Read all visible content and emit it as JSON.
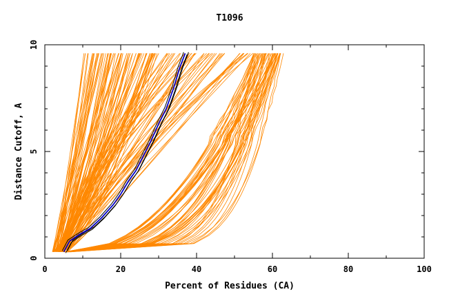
{
  "chart_data": {
    "type": "line",
    "title": "T1096",
    "xlabel": "Percent of Residues (CA)",
    "ylabel": "Distance Cutoff, A",
    "xlim": [
      0,
      100
    ],
    "ylim": [
      0,
      10
    ],
    "x_ticks": [
      0,
      20,
      40,
      60,
      80,
      100
    ],
    "y_ticks": [
      0,
      5,
      10
    ],
    "y_tick_labels": [
      "0",
      "5",
      "10"
    ],
    "x_tick_labels": [
      "0",
      "20",
      "40",
      "60",
      "80",
      "100"
    ],
    "grid": false,
    "colors": {
      "models": "#ff8800",
      "highlight_outline": "#000000",
      "highlight": "#0000cc"
    },
    "series_groups": [
      {
        "style": "models",
        "count": 180,
        "curve_families": [
          {
            "label": "steep",
            "x_at_0.3": [
              2,
              5
            ],
            "x_at_9.6": [
              10,
              30
            ]
          },
          {
            "label": "middle",
            "x_at_0.3": [
              4,
              6
            ],
            "x_at_9.6": [
              30,
              55
            ]
          },
          {
            "label": "flat",
            "x_at_0.3": [
              5,
              7
            ],
            "x_at_9.6": [
              55,
              63
            ]
          }
        ]
      },
      {
        "style": "highlight",
        "points": [
          {
            "x": 5.0,
            "y": 0.3
          },
          {
            "x": 6.5,
            "y": 0.8
          },
          {
            "x": 9.0,
            "y": 1.1
          },
          {
            "x": 12.0,
            "y": 1.4
          },
          {
            "x": 15.0,
            "y": 1.9
          },
          {
            "x": 18.0,
            "y": 2.5
          },
          {
            "x": 20.0,
            "y": 3.0
          },
          {
            "x": 22.0,
            "y": 3.6
          },
          {
            "x": 24.0,
            "y": 4.1
          },
          {
            "x": 26.0,
            "y": 4.8
          },
          {
            "x": 28.0,
            "y": 5.5
          },
          {
            "x": 30.0,
            "y": 6.3
          },
          {
            "x": 32.0,
            "y": 7.0
          },
          {
            "x": 34.0,
            "y": 8.0
          },
          {
            "x": 35.5,
            "y": 8.9
          },
          {
            "x": 37.0,
            "y": 9.6
          }
        ]
      }
    ]
  }
}
